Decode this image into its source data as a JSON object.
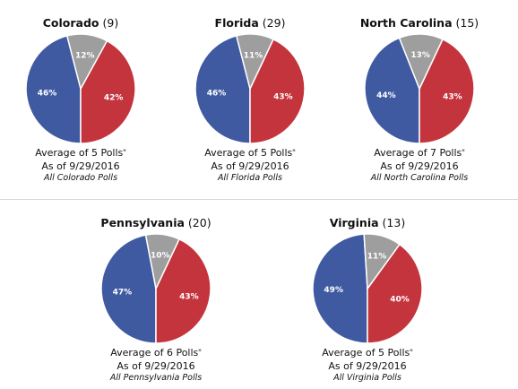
{
  "chart_data": [
    {
      "type": "pie",
      "title": "Colorado",
      "electoral_votes": "(9)",
      "slices": [
        {
          "label": "Blue",
          "value": 46,
          "text": "46%",
          "color": "#3f5aa0"
        },
        {
          "label": "Red",
          "value": 42,
          "text": "42%",
          "color": "#c4343d"
        },
        {
          "label": "Gray",
          "value": 12,
          "text": "12%",
          "color": "#9e9e9e"
        }
      ],
      "caption": "Average of 5 Polls",
      "caption_mark": "*",
      "date": "As of 9/29/2016",
      "link": "All Colorado Polls"
    },
    {
      "type": "pie",
      "title": "Florida",
      "electoral_votes": "(29)",
      "slices": [
        {
          "label": "Blue",
          "value": 46,
          "text": "46%",
          "color": "#3f5aa0"
        },
        {
          "label": "Red",
          "value": 43,
          "text": "43%",
          "color": "#c4343d"
        },
        {
          "label": "Gray",
          "value": 11,
          "text": "11%",
          "color": "#9e9e9e"
        }
      ],
      "caption": "Average of 5 Polls",
      "caption_mark": "*",
      "date": "As of 9/29/2016",
      "link": "All Florida Polls"
    },
    {
      "type": "pie",
      "title": "North Carolina",
      "electoral_votes": "(15)",
      "slices": [
        {
          "label": "Blue",
          "value": 44,
          "text": "44%",
          "color": "#3f5aa0"
        },
        {
          "label": "Red",
          "value": 43,
          "text": "43%",
          "color": "#c4343d"
        },
        {
          "label": "Gray",
          "value": 13,
          "text": "13%",
          "color": "#9e9e9e"
        }
      ],
      "caption": "Average of 7 Polls",
      "caption_mark": "*",
      "date": "As of 9/29/2016",
      "link": "All North Carolina Polls"
    },
    {
      "type": "pie",
      "title": "Pennsylvania",
      "electoral_votes": "(20)",
      "slices": [
        {
          "label": "Blue",
          "value": 47,
          "text": "47%",
          "color": "#3f5aa0"
        },
        {
          "label": "Red",
          "value": 43,
          "text": "43%",
          "color": "#c4343d"
        },
        {
          "label": "Gray",
          "value": 10,
          "text": "10%",
          "color": "#9e9e9e"
        }
      ],
      "caption": "Average of 6 Polls",
      "caption_mark": "*",
      "date": "As of 9/29/2016",
      "link": "All Pennsylvania Polls"
    },
    {
      "type": "pie",
      "title": "Virginia",
      "electoral_votes": "(13)",
      "slices": [
        {
          "label": "Blue",
          "value": 49,
          "text": "49%",
          "color": "#3f5aa0"
        },
        {
          "label": "Red",
          "value": 40,
          "text": "40%",
          "color": "#c4343d"
        },
        {
          "label": "Gray",
          "value": 11,
          "text": "11%",
          "color": "#9e9e9e"
        }
      ],
      "caption": "Average of 5 Polls",
      "caption_mark": "*",
      "date": "As of 9/29/2016",
      "link": "All Virginia Polls"
    }
  ]
}
